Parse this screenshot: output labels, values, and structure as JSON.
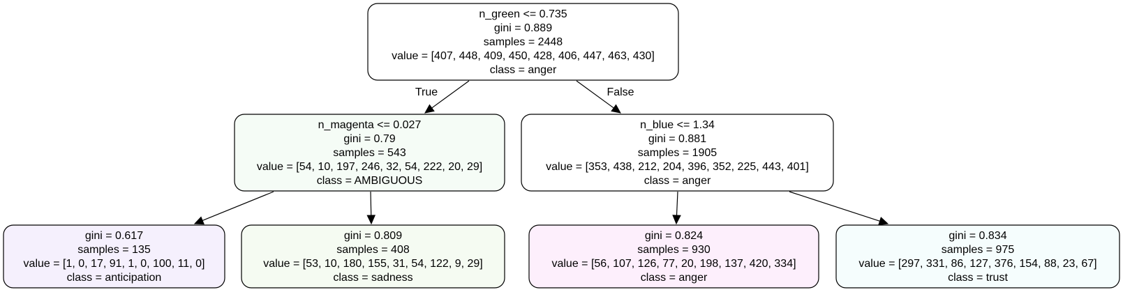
{
  "nodes": [
    {
      "id": "root",
      "fill": "#ffffff",
      "lines": [
        "n_green <= 0.735",
        "gini = 0.889",
        "samples = 2448",
        "value = [407, 448, 409, 450, 428, 406, 447, 463, 430]",
        "class = anger"
      ]
    },
    {
      "id": "left",
      "fill": "#f5fcf6",
      "lines": [
        "n_magenta <= 0.027",
        "gini = 0.79",
        "samples = 543",
        "value = [54, 10, 197, 246, 32, 54, 222, 20, 29]",
        "class = AMBIGUOUS"
      ]
    },
    {
      "id": "right",
      "fill": "#ffffff",
      "lines": [
        "n_blue <= 1.34",
        "gini = 0.881",
        "samples = 1905",
        "value = [353, 438, 212, 204, 396, 352, 225, 443, 401]",
        "class = anger"
      ]
    },
    {
      "id": "leaf1",
      "fill": "#f5f0fd",
      "lines": [
        "gini = 0.617",
        "samples = 135",
        "value = [1, 0, 17, 91, 1, 0, 100, 11, 0]",
        "class = anticipation"
      ]
    },
    {
      "id": "leaf2",
      "fill": "#f5fbf2",
      "lines": [
        "gini = 0.809",
        "samples = 408",
        "value = [53, 10, 180, 155, 31, 54, 122, 9, 29]",
        "class = sadness"
      ]
    },
    {
      "id": "leaf3",
      "fill": "#fdeffc",
      "lines": [
        "gini = 0.824",
        "samples = 930",
        "value = [56, 107, 126, 77, 20, 198, 137, 420, 334]",
        "class = anger"
      ]
    },
    {
      "id": "leaf4",
      "fill": "#f5fdfd",
      "lines": [
        "gini = 0.834",
        "samples = 975",
        "value = [297, 331, 86, 127, 376, 154, 88, 23, 67]",
        "class = trust"
      ]
    }
  ],
  "edges": [
    {
      "from": "root",
      "to": "left",
      "label": "True"
    },
    {
      "from": "root",
      "to": "right",
      "label": "False"
    },
    {
      "from": "left",
      "to": "leaf1",
      "label": ""
    },
    {
      "from": "left",
      "to": "leaf2",
      "label": ""
    },
    {
      "from": "right",
      "to": "leaf3",
      "label": ""
    },
    {
      "from": "right",
      "to": "leaf4",
      "label": ""
    }
  ]
}
